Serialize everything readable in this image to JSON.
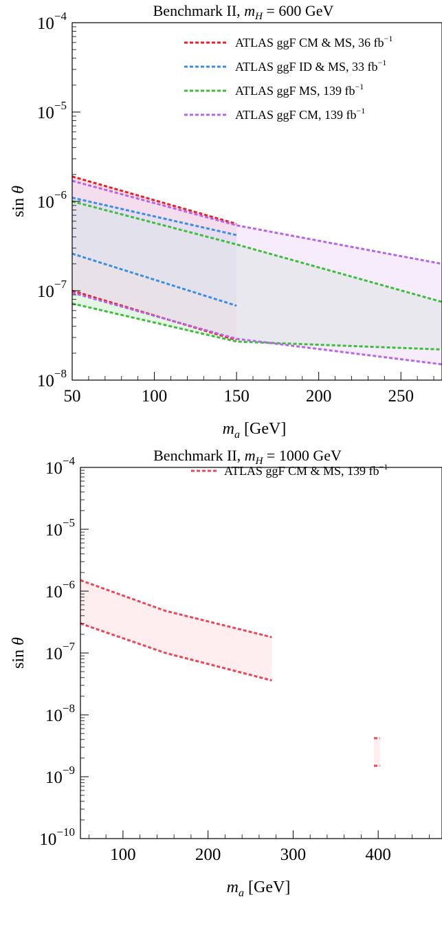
{
  "chart_data": [
    {
      "type": "area",
      "title": "Benchmark II, m_H = 600 GeV",
      "title_parts": {
        "prefix": "Benchmark II, ",
        "sym": "m",
        "sub": "H",
        "suffix": " = 600 GeV"
      },
      "xlabel": "m_a [GeV]",
      "xlabel_parts": {
        "sym": "m",
        "sub": "a",
        "unit": "[GeV]"
      },
      "ylabel": "sin θ",
      "ylabel_parts": {
        "fn": "sin",
        "sym": "θ"
      },
      "y_scale": "log",
      "xlim": [
        50,
        275
      ],
      "ylim_exp": [
        -8,
        -4
      ],
      "x_ticks": [
        50,
        100,
        150,
        200,
        250
      ],
      "x_tick_labels": [
        "50",
        "100",
        "150",
        "200",
        "250"
      ],
      "y_ticks_exp": [
        -8,
        -7,
        -6,
        -5,
        -4
      ],
      "y_tick_labels": [
        {
          "base": "10",
          "exp": "−8"
        },
        {
          "base": "10",
          "exp": "−7"
        },
        {
          "base": "10",
          "exp": "−6"
        },
        {
          "base": "10",
          "exp": "−5"
        },
        {
          "base": "10",
          "exp": "−4"
        }
      ],
      "grid": false,
      "legend_position": "top-right",
      "series": [
        {
          "name": "ATLAS ggF CM & MS, 36 fb⁻¹",
          "legend_parts": {
            "text": "ATLAS ggF CM & MS, 36 fb",
            "sup": "−1"
          },
          "color": "#e8202a",
          "fill": "#f7c3c9",
          "upper": [
            [
              50,
              1.9e-06
            ],
            [
              150,
              5.6e-07
            ]
          ],
          "lower": [
            [
              50,
              1e-07
            ],
            [
              150,
              2.8e-08
            ]
          ]
        },
        {
          "name": "ATLAS ggF ID & MS, 33 fb⁻¹",
          "legend_parts": {
            "text": "ATLAS ggF ID & MS, 33 fb",
            "sup": "−1"
          },
          "color": "#3a8ee6",
          "fill": "#c6dff7",
          "upper": [
            [
              50,
              1.1e-06
            ],
            [
              150,
              4.2e-07
            ]
          ],
          "lower": [
            [
              50,
              2.6e-07
            ],
            [
              150,
              6.8e-08
            ]
          ]
        },
        {
          "name": "ATLAS ggF MS, 139 fb⁻¹",
          "legend_parts": {
            "text": "ATLAS ggF MS, 139 fb",
            "sup": "−1"
          },
          "color": "#3cbe3c",
          "fill": "#cdeecd",
          "upper": [
            [
              50,
              1e-06
            ],
            [
              150,
              3.3e-07
            ],
            [
              275,
              7.5e-08
            ]
          ],
          "lower": [
            [
              50,
              7.2e-08
            ],
            [
              150,
              2.7e-08
            ],
            [
              275,
              2.2e-08
            ]
          ]
        },
        {
          "name": "ATLAS ggF CM, 139 fb⁻¹",
          "legend_parts": {
            "text": "ATLAS ggF CM, 139 fb",
            "sup": "−1"
          },
          "color": "#b765e6",
          "fill": "#efdcf8",
          "upper": [
            [
              50,
              1.7e-06
            ],
            [
              150,
              5.4e-07
            ],
            [
              275,
              2e-07
            ]
          ],
          "lower": [
            [
              50,
              9.5e-08
            ],
            [
              150,
              2.9e-08
            ],
            [
              275,
              1.5e-08
            ]
          ]
        }
      ]
    },
    {
      "type": "area",
      "title": "Benchmark II, m_H = 1000 GeV",
      "title_parts": {
        "prefix": "Benchmark II, ",
        "sym": "m",
        "sub": "H",
        "suffix": " = 1000 GeV"
      },
      "xlabel": "m_a [GeV]",
      "xlabel_parts": {
        "sym": "m",
        "sub": "a",
        "unit": "[GeV]"
      },
      "ylabel": "sin θ",
      "ylabel_parts": {
        "fn": "sin",
        "sym": "θ"
      },
      "y_scale": "log",
      "xlim": [
        50,
        475
      ],
      "ylim_exp": [
        -10,
        -4
      ],
      "x_ticks": [
        100,
        200,
        300,
        400
      ],
      "x_tick_labels": [
        "100",
        "200",
        "300",
        "400"
      ],
      "y_ticks_exp": [
        -10,
        -9,
        -8,
        -7,
        -6,
        -5,
        -4
      ],
      "y_tick_labels": [
        {
          "base": "10",
          "exp": "−10"
        },
        {
          "base": "10",
          "exp": "−9"
        },
        {
          "base": "10",
          "exp": "−8"
        },
        {
          "base": "10",
          "exp": "−7"
        },
        {
          "base": "10",
          "exp": "−6"
        },
        {
          "base": "10",
          "exp": "−5"
        },
        {
          "base": "10",
          "exp": "−4"
        }
      ],
      "grid": false,
      "legend_position": "top-right",
      "series": [
        {
          "name": "ATLAS ggF CM & MS, 139 fb⁻¹",
          "legend_parts": {
            "text": "ATLAS ggF CM & MS, 139 fb",
            "sup": "−1"
          },
          "color": "#e8495a",
          "fill": "#fde0e3",
          "upper": [
            [
              50,
              1.5e-06
            ],
            [
              150,
              4.8e-07
            ],
            [
              275,
              1.8e-07
            ]
          ],
          "lower": [
            [
              50,
              3e-07
            ],
            [
              150,
              1e-07
            ],
            [
              275,
              3.6e-08
            ]
          ]
        },
        {
          "name": "ATLAS ggF CM & MS, 139 fb⁻¹ (isolated)",
          "legend_parts": null,
          "color": "#e8495a",
          "fill": "#fde0e3",
          "upper": [
            [
              395,
              4.2e-09
            ],
            [
              402,
              4.2e-09
            ]
          ],
          "lower": [
            [
              395,
              1.5e-09
            ],
            [
              402,
              1.5e-09
            ]
          ]
        }
      ]
    }
  ]
}
